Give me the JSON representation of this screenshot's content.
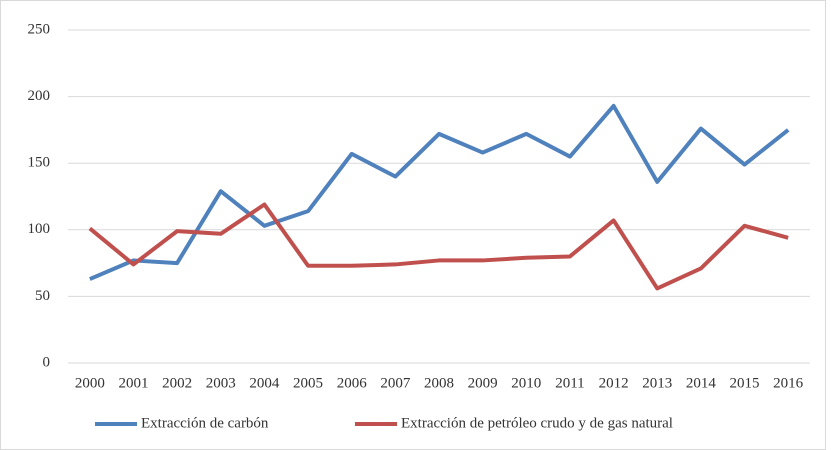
{
  "chart_data": {
    "type": "line",
    "categories": [
      "2000",
      "2001",
      "2002",
      "2003",
      "2004",
      "2005",
      "2006",
      "2007",
      "2008",
      "2009",
      "2010",
      "2011",
      "2012",
      "2013",
      "2014",
      "2015",
      "2016"
    ],
    "series": [
      {
        "name": "Extracción de carbón",
        "color": "#4f81bd",
        "values": [
          63,
          77,
          75,
          129,
          103,
          114,
          157,
          140,
          172,
          158,
          172,
          155,
          193,
          136,
          176,
          149,
          175
        ]
      },
      {
        "name": "Extracción de petróleo crudo y de gas natural",
        "color": "#c0504d",
        "values": [
          101,
          74,
          99,
          97,
          119,
          73,
          73,
          74,
          77,
          77,
          79,
          80,
          107,
          56,
          71,
          103,
          94
        ]
      }
    ],
    "ylim": [
      0,
      250
    ],
    "yticks": [
      0,
      50,
      100,
      150,
      200,
      250
    ],
    "grid": true,
    "legend": "bottom"
  }
}
